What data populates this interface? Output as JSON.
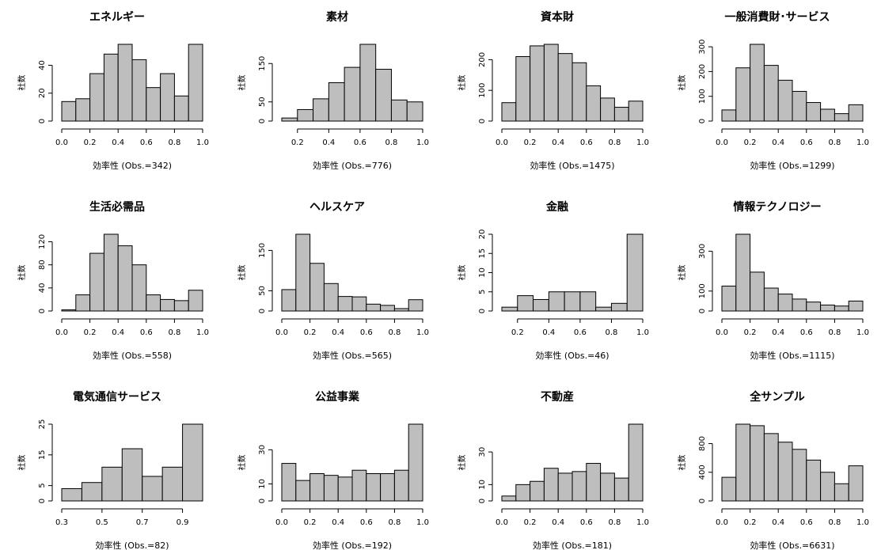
{
  "chart_data": [
    {
      "type": "histogram",
      "title": "エネルギー",
      "xlabel": "効率性 (Obs.=342)",
      "ylabel": "社数",
      "color": "#bebebe",
      "bins": [
        0,
        0.1,
        0.2,
        0.3,
        0.4,
        0.5,
        0.6,
        0.7,
        0.8,
        0.9,
        1
      ],
      "counts": [
        14,
        16,
        34,
        48,
        55,
        44,
        24,
        34,
        18,
        55
      ],
      "xlim": [
        0,
        1
      ],
      "ylim": [
        0,
        55
      ],
      "xticks": [
        {
          "value": 0,
          "label": "0.0"
        },
        0.2,
        0.4,
        0.6,
        0.8,
        {
          "value": 1,
          "label": "1.0"
        }
      ],
      "yticks": [
        0,
        20,
        40
      ]
    },
    {
      "type": "histogram",
      "title": "素材",
      "xlabel": "効率性 (Obs.=776)",
      "ylabel": "社数",
      "color": "#bebebe",
      "bins": [
        0.1,
        0.2,
        0.3,
        0.4,
        0.5,
        0.6,
        0.7,
        0.8,
        0.9,
        1
      ],
      "counts": [
        8,
        30,
        58,
        100,
        140,
        200,
        135,
        55,
        50
      ],
      "xlim": [
        0.1,
        1
      ],
      "ylim": [
        0,
        200
      ],
      "xticks": [
        0.2,
        0.4,
        0.6,
        0.8,
        {
          "value": 1,
          "label": "1.0"
        }
      ],
      "yticks": [
        0,
        50,
        150
      ]
    },
    {
      "type": "histogram",
      "title": "資本財",
      "xlabel": "効率性 (Obs.=1475)",
      "ylabel": "社数",
      "color": "#bebebe",
      "bins": [
        0,
        0.1,
        0.2,
        0.3,
        0.4,
        0.5,
        0.6,
        0.7,
        0.8,
        0.9,
        1
      ],
      "counts": [
        60,
        210,
        245,
        250,
        220,
        190,
        115,
        75,
        45,
        65
      ],
      "xlim": [
        0,
        1
      ],
      "ylim": [
        0,
        250
      ],
      "xticks": [
        {
          "value": 0,
          "label": "0.0"
        },
        0.2,
        0.4,
        0.6,
        0.8,
        {
          "value": 1,
          "label": "1.0"
        }
      ],
      "yticks": [
        0,
        100,
        200
      ]
    },
    {
      "type": "histogram",
      "title": "一般消費財･サービス",
      "xlabel": "効率性 (Obs.=1299)",
      "ylabel": "社数",
      "color": "#bebebe",
      "bins": [
        0,
        0.1,
        0.2,
        0.3,
        0.4,
        0.5,
        0.6,
        0.7,
        0.8,
        0.9,
        1
      ],
      "counts": [
        45,
        215,
        310,
        225,
        165,
        120,
        75,
        48,
        30,
        66
      ],
      "xlim": [
        0,
        1
      ],
      "ylim": [
        0,
        310
      ],
      "xticks": [
        {
          "value": 0,
          "label": "0.0"
        },
        0.2,
        0.4,
        0.6,
        0.8,
        {
          "value": 1,
          "label": "1.0"
        }
      ],
      "yticks": [
        0,
        100,
        200,
        300
      ]
    },
    {
      "type": "histogram",
      "title": "生活必需品",
      "xlabel": "効率性 (Obs.=558)",
      "ylabel": "社数",
      "color": "#bebebe",
      "bins": [
        0,
        0.1,
        0.2,
        0.3,
        0.4,
        0.5,
        0.6,
        0.7,
        0.8,
        0.9,
        1
      ],
      "counts": [
        2,
        28,
        100,
        133,
        113,
        80,
        28,
        20,
        18,
        36
      ],
      "xlim": [
        0,
        1
      ],
      "ylim": [
        0,
        133
      ],
      "xticks": [
        {
          "value": 0,
          "label": "0.0"
        },
        0.2,
        0.4,
        0.6,
        0.8,
        {
          "value": 1,
          "label": "1.0"
        }
      ],
      "yticks": [
        0,
        40,
        80,
        120
      ]
    },
    {
      "type": "histogram",
      "title": "ヘルスケア",
      "xlabel": "効率性 (Obs.=565)",
      "ylabel": "社数",
      "color": "#bebebe",
      "bins": [
        0,
        0.1,
        0.2,
        0.3,
        0.4,
        0.5,
        0.6,
        0.7,
        0.8,
        0.9,
        1
      ],
      "counts": [
        53,
        190,
        118,
        68,
        36,
        35,
        17,
        14,
        6,
        28
      ],
      "xlim": [
        0,
        1
      ],
      "ylim": [
        0,
        190
      ],
      "xticks": [
        {
          "value": 0,
          "label": "0.0"
        },
        0.2,
        0.4,
        0.6,
        0.8,
        {
          "value": 1,
          "label": "1.0"
        }
      ],
      "yticks": [
        0,
        50,
        150
      ]
    },
    {
      "type": "histogram",
      "title": "金融",
      "xlabel": "効率性 (Obs.=46)",
      "ylabel": "社数",
      "color": "#bebebe",
      "bins": [
        0.1,
        0.2,
        0.3,
        0.4,
        0.5,
        0.6,
        0.7,
        0.8,
        0.9,
        1
      ],
      "counts": [
        1,
        4,
        3,
        5,
        5,
        5,
        1,
        2,
        20
      ],
      "xlim": [
        0.1,
        1
      ],
      "ylim": [
        0,
        20
      ],
      "xticks": [
        0.2,
        0.4,
        0.6,
        0.8,
        {
          "value": 1,
          "label": "1.0"
        }
      ],
      "yticks": [
        0,
        5,
        10,
        15,
        20
      ]
    },
    {
      "type": "histogram",
      "title": "情報テクノロジー",
      "xlabel": "効率性 (Obs.=1115)",
      "ylabel": "社数",
      "color": "#bebebe",
      "bins": [
        0,
        0.1,
        0.2,
        0.3,
        0.4,
        0.5,
        0.6,
        0.7,
        0.8,
        0.9,
        1
      ],
      "counts": [
        125,
        385,
        195,
        115,
        85,
        60,
        45,
        30,
        25,
        50
      ],
      "xlim": [
        0,
        1
      ],
      "ylim": [
        0,
        385
      ],
      "xticks": [
        {
          "value": 0,
          "label": "0.0"
        },
        0.2,
        0.4,
        0.6,
        0.8,
        {
          "value": 1,
          "label": "1.0"
        }
      ],
      "yticks": [
        0,
        100,
        300
      ]
    },
    {
      "type": "histogram",
      "title": "電気通信サービス",
      "xlabel": "効率性 (Obs.=82)",
      "ylabel": "社数",
      "color": "#bebebe",
      "bins": [
        0.3,
        0.4,
        0.5,
        0.6,
        0.7,
        0.8,
        0.9,
        1
      ],
      "counts": [
        4,
        6,
        11,
        17,
        8,
        11,
        25
      ],
      "xlim": [
        0.3,
        1
      ],
      "ylim": [
        0,
        25
      ],
      "xticks": [
        0.3,
        0.5,
        0.7,
        0.9
      ],
      "yticks": [
        0,
        5,
        15,
        25
      ]
    },
    {
      "type": "histogram",
      "title": "公益事業",
      "xlabel": "効率性 (Obs.=192)",
      "ylabel": "社数",
      "color": "#bebebe",
      "bins": [
        0,
        0.1,
        0.2,
        0.3,
        0.4,
        0.5,
        0.6,
        0.7,
        0.8,
        0.9,
        1
      ],
      "counts": [
        22,
        12,
        16,
        15,
        14,
        18,
        16,
        16,
        18,
        45
      ],
      "xlim": [
        0,
        1
      ],
      "ylim": [
        0,
        45
      ],
      "xticks": [
        {
          "value": 0,
          "label": "0.0"
        },
        0.2,
        0.4,
        0.6,
        0.8,
        {
          "value": 1,
          "label": "1.0"
        }
      ],
      "yticks": [
        0,
        10,
        30
      ]
    },
    {
      "type": "histogram",
      "title": "不動産",
      "xlabel": "効率性 (Obs.=181)",
      "ylabel": "社数",
      "color": "#bebebe",
      "bins": [
        0,
        0.1,
        0.2,
        0.3,
        0.4,
        0.5,
        0.6,
        0.7,
        0.8,
        0.9,
        1
      ],
      "counts": [
        3,
        10,
        12,
        20,
        17,
        18,
        23,
        17,
        14,
        47
      ],
      "xlim": [
        0,
        1
      ],
      "ylim": [
        0,
        47
      ],
      "xticks": [
        {
          "value": 0,
          "label": "0.0"
        },
        0.2,
        0.4,
        0.6,
        0.8,
        {
          "value": 1,
          "label": "1.0"
        }
      ],
      "yticks": [
        0,
        10,
        30
      ]
    },
    {
      "type": "histogram",
      "title": "全サンプル",
      "xlabel": "効率性 (Obs.=6631)",
      "ylabel": "社数",
      "color": "#bebebe",
      "bins": [
        0,
        0.1,
        0.2,
        0.3,
        0.4,
        0.5,
        0.6,
        0.7,
        0.8,
        0.9,
        1
      ],
      "counts": [
        330,
        1071,
        1050,
        940,
        820,
        720,
        570,
        400,
        240,
        490
      ],
      "xlim": [
        0,
        1
      ],
      "ylim": [
        0,
        1071
      ],
      "xticks": [
        {
          "value": 0,
          "label": "0.0"
        },
        0.2,
        0.4,
        0.6,
        0.8,
        {
          "value": 1,
          "label": "1.0"
        }
      ],
      "yticks": [
        0,
        400,
        800
      ]
    }
  ]
}
